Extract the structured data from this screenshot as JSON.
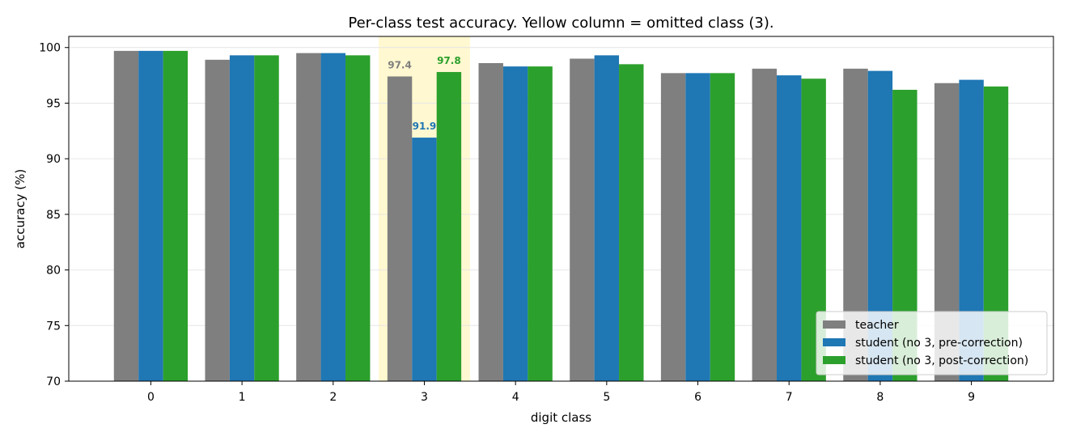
{
  "chart_data": {
    "type": "bar",
    "title": "Per-class test accuracy. Yellow column = omitted class (3).",
    "xlabel": "digit class",
    "ylabel": "accuracy (%)",
    "ylim": [
      70,
      101
    ],
    "yticks": [
      70,
      75,
      80,
      85,
      90,
      95,
      100
    ],
    "grid": "horizontal",
    "legend_position": "lower-right",
    "categories": [
      "0",
      "1",
      "2",
      "3",
      "4",
      "5",
      "6",
      "7",
      "8",
      "9"
    ],
    "highlight_category": "3",
    "highlight_color": "#fff8d0",
    "series": [
      {
        "name": "teacher",
        "color": "#7f7f7f",
        "values": [
          99.7,
          98.9,
          99.5,
          97.4,
          98.6,
          99.0,
          97.7,
          98.1,
          98.1,
          96.8
        ]
      },
      {
        "name": "student (no 3, pre-correction)",
        "color": "#1f77b4",
        "values": [
          99.7,
          99.3,
          99.5,
          91.9,
          98.3,
          99.3,
          97.7,
          97.5,
          97.9,
          97.1
        ]
      },
      {
        "name": "student (no 3, post-correction)",
        "color": "#2ca02c",
        "values": [
          99.7,
          99.3,
          99.3,
          97.8,
          98.3,
          98.5,
          97.7,
          97.2,
          96.2,
          96.5
        ]
      }
    ],
    "annotations": [
      {
        "category": "3",
        "series": 0,
        "text": "97.4"
      },
      {
        "category": "3",
        "series": 1,
        "text": "91.9"
      },
      {
        "category": "3",
        "series": 2,
        "text": "97.8"
      }
    ]
  }
}
